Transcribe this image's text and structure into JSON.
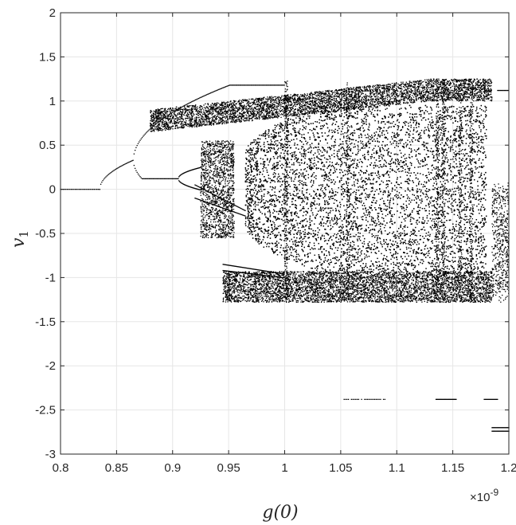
{
  "chart_data": {
    "type": "scatter",
    "title": "",
    "xlabel": "g(0)",
    "ylabel": "v",
    "ylabel_subscript": "1",
    "x_exponent_base": "×10",
    "x_exponent_power": "-9",
    "xlim": [
      0.8,
      1.2
    ],
    "ylim": [
      -3,
      2
    ],
    "grid": true,
    "legend": "none",
    "xticks": [
      "0.8",
      "0.85",
      "0.9",
      "0.95",
      "1",
      "1.05",
      "1.1",
      "1.15",
      "1.2"
    ],
    "yticks": [
      "2",
      "1.5",
      "1",
      "0.5",
      "0",
      "-0.5",
      "-1",
      "-1.5",
      "-2",
      "-2.5",
      "-3"
    ],
    "marker_color": "#000000",
    "series": [
      {
        "description_points": [
          {
            "x": 0.8,
            "y": 0.0
          },
          {
            "x": 0.835,
            "y": 0.0
          },
          {
            "x": 0.85,
            "y": 0.2
          },
          {
            "x": 0.865,
            "y": 0.33
          },
          {
            "x": 0.9,
            "y": 0.7
          },
          {
            "x": 0.95,
            "y": 0.95
          },
          {
            "x": 1.0,
            "y": 1.1
          },
          {
            "x": 0.9,
            "y": 0.12
          },
          {
            "x": 0.92,
            "y": 0.05
          },
          {
            "x": 0.95,
            "y": -0.2
          },
          {
            "x": 0.96,
            "y": -0.3
          },
          {
            "x": 0.96,
            "y": -0.85
          },
          {
            "x": 1.0,
            "y": -1.0
          },
          {
            "x": 1.053,
            "y": -2.38
          },
          {
            "x": 1.09,
            "y": -2.38
          },
          {
            "x": 1.135,
            "y": -2.38
          },
          {
            "x": 1.153,
            "y": -2.38
          },
          {
            "x": 1.178,
            "y": -2.38
          },
          {
            "x": 1.19,
            "y": -2.38
          },
          {
            "x": 1.185,
            "y": -2.72
          },
          {
            "x": 1.2,
            "y": -2.72
          },
          {
            "x": 1.19,
            "y": 1.12
          },
          {
            "x": 1.2,
            "y": 1.12
          }
        ]
      }
    ]
  }
}
